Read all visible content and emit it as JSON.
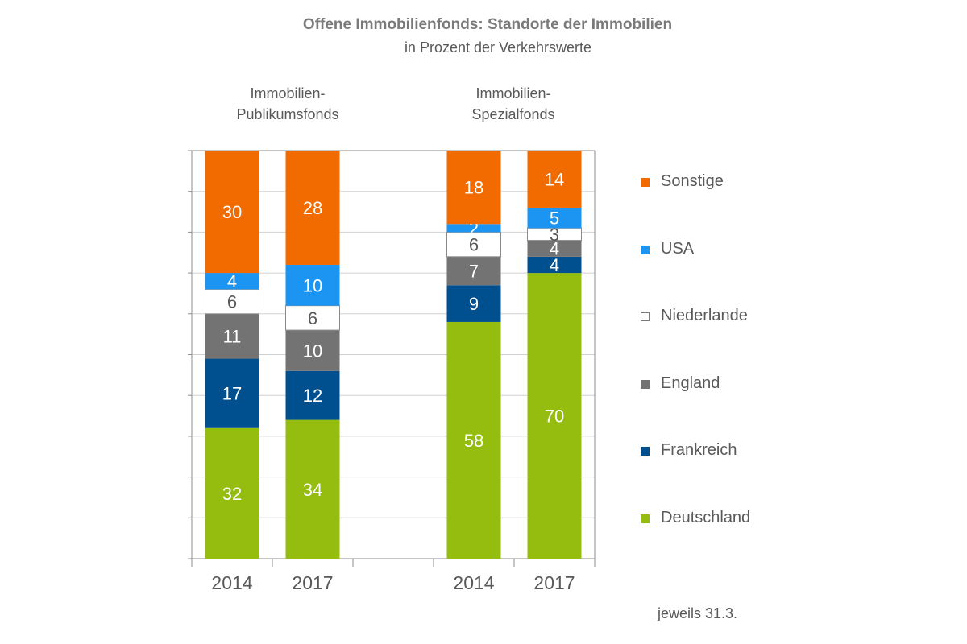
{
  "chart_data": {
    "type": "bar",
    "stacked": true,
    "title": "Offene Immobilienfonds: Standorte der Immobilien",
    "subtitle": "in Prozent der Verkehrswerte",
    "note": "jeweils 31.3.",
    "groups": [
      {
        "label": "Immobilien-\nPublikumsfonds",
        "categories": [
          "2014",
          "2017"
        ]
      },
      {
        "label": "Immobilien-\nSpezialfonds",
        "categories": [
          "2014",
          "2017"
        ]
      }
    ],
    "categories": [
      "2014",
      "2017",
      "2014",
      "2017"
    ],
    "series": [
      {
        "name": "Deutschland",
        "color": "#94bd0f",
        "values": [
          32,
          34,
          58,
          70
        ]
      },
      {
        "name": "Frankreich",
        "color": "#004f8f",
        "values": [
          17,
          12,
          9,
          4
        ]
      },
      {
        "name": "England",
        "color": "#737373",
        "values": [
          11,
          10,
          7,
          4
        ]
      },
      {
        "name": "Niederlande",
        "color": "#ffffff",
        "values": [
          6,
          6,
          6,
          3
        ]
      },
      {
        "name": "USA",
        "color": "#1b94f2",
        "values": [
          4,
          10,
          2,
          5
        ]
      },
      {
        "name": "Sonstige",
        "color": "#f26b00",
        "values": [
          30,
          28,
          18,
          14
        ]
      }
    ],
    "legend": [
      "Sonstige",
      "USA",
      "Niederlande",
      "England",
      "Frankreich",
      "Deutschland"
    ],
    "ylim": [
      0,
      100
    ],
    "grid": true,
    "legend_position": "right"
  }
}
